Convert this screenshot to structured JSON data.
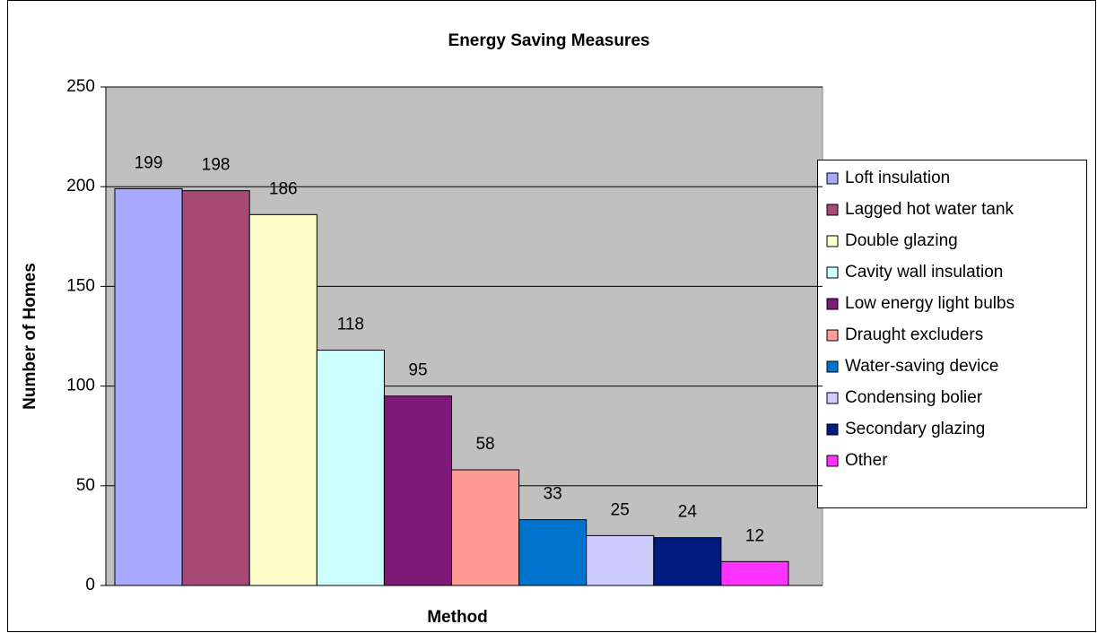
{
  "chart_data": {
    "type": "bar",
    "title": "Energy Saving Measures",
    "x_label": "Method",
    "y_label": "Number of Homes",
    "categories": [
      "Loft insulation",
      "Lagged hot water tank",
      "Double glazing",
      "Cavity wall insulation",
      "Low energy light bulbs",
      "Draught excluders",
      "Water-saving device",
      "Condensing bolier",
      "Secondary glazing",
      "Other"
    ],
    "values": [
      199,
      198,
      186,
      118,
      95,
      58,
      33,
      25,
      24,
      12
    ],
    "colors": [
      "#a9a9ff",
      "#a64a75",
      "#ffffcc",
      "#ccffff",
      "#7d1a78",
      "#ff9a94",
      "#0073cc",
      "#ccccff",
      "#001a80",
      "#ff33ff"
    ],
    "ylim": [
      0,
      250
    ],
    "yticks": [
      0,
      50,
      100,
      150,
      200,
      250
    ],
    "grid": true,
    "legend": "right"
  }
}
